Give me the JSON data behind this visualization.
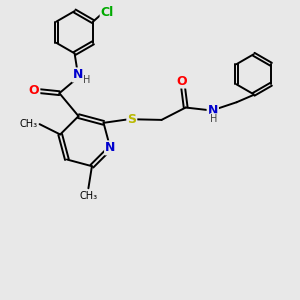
{
  "background_color": "#e8e8e8",
  "atom_colors": {
    "C": "#000000",
    "N": "#0000cd",
    "O": "#ff0000",
    "S": "#b8b800",
    "Cl": "#00aa00",
    "H": "#404040"
  },
  "bond_color": "#000000",
  "font_size": 8,
  "fig_width": 3.0,
  "fig_height": 3.0,
  "dpi": 100
}
